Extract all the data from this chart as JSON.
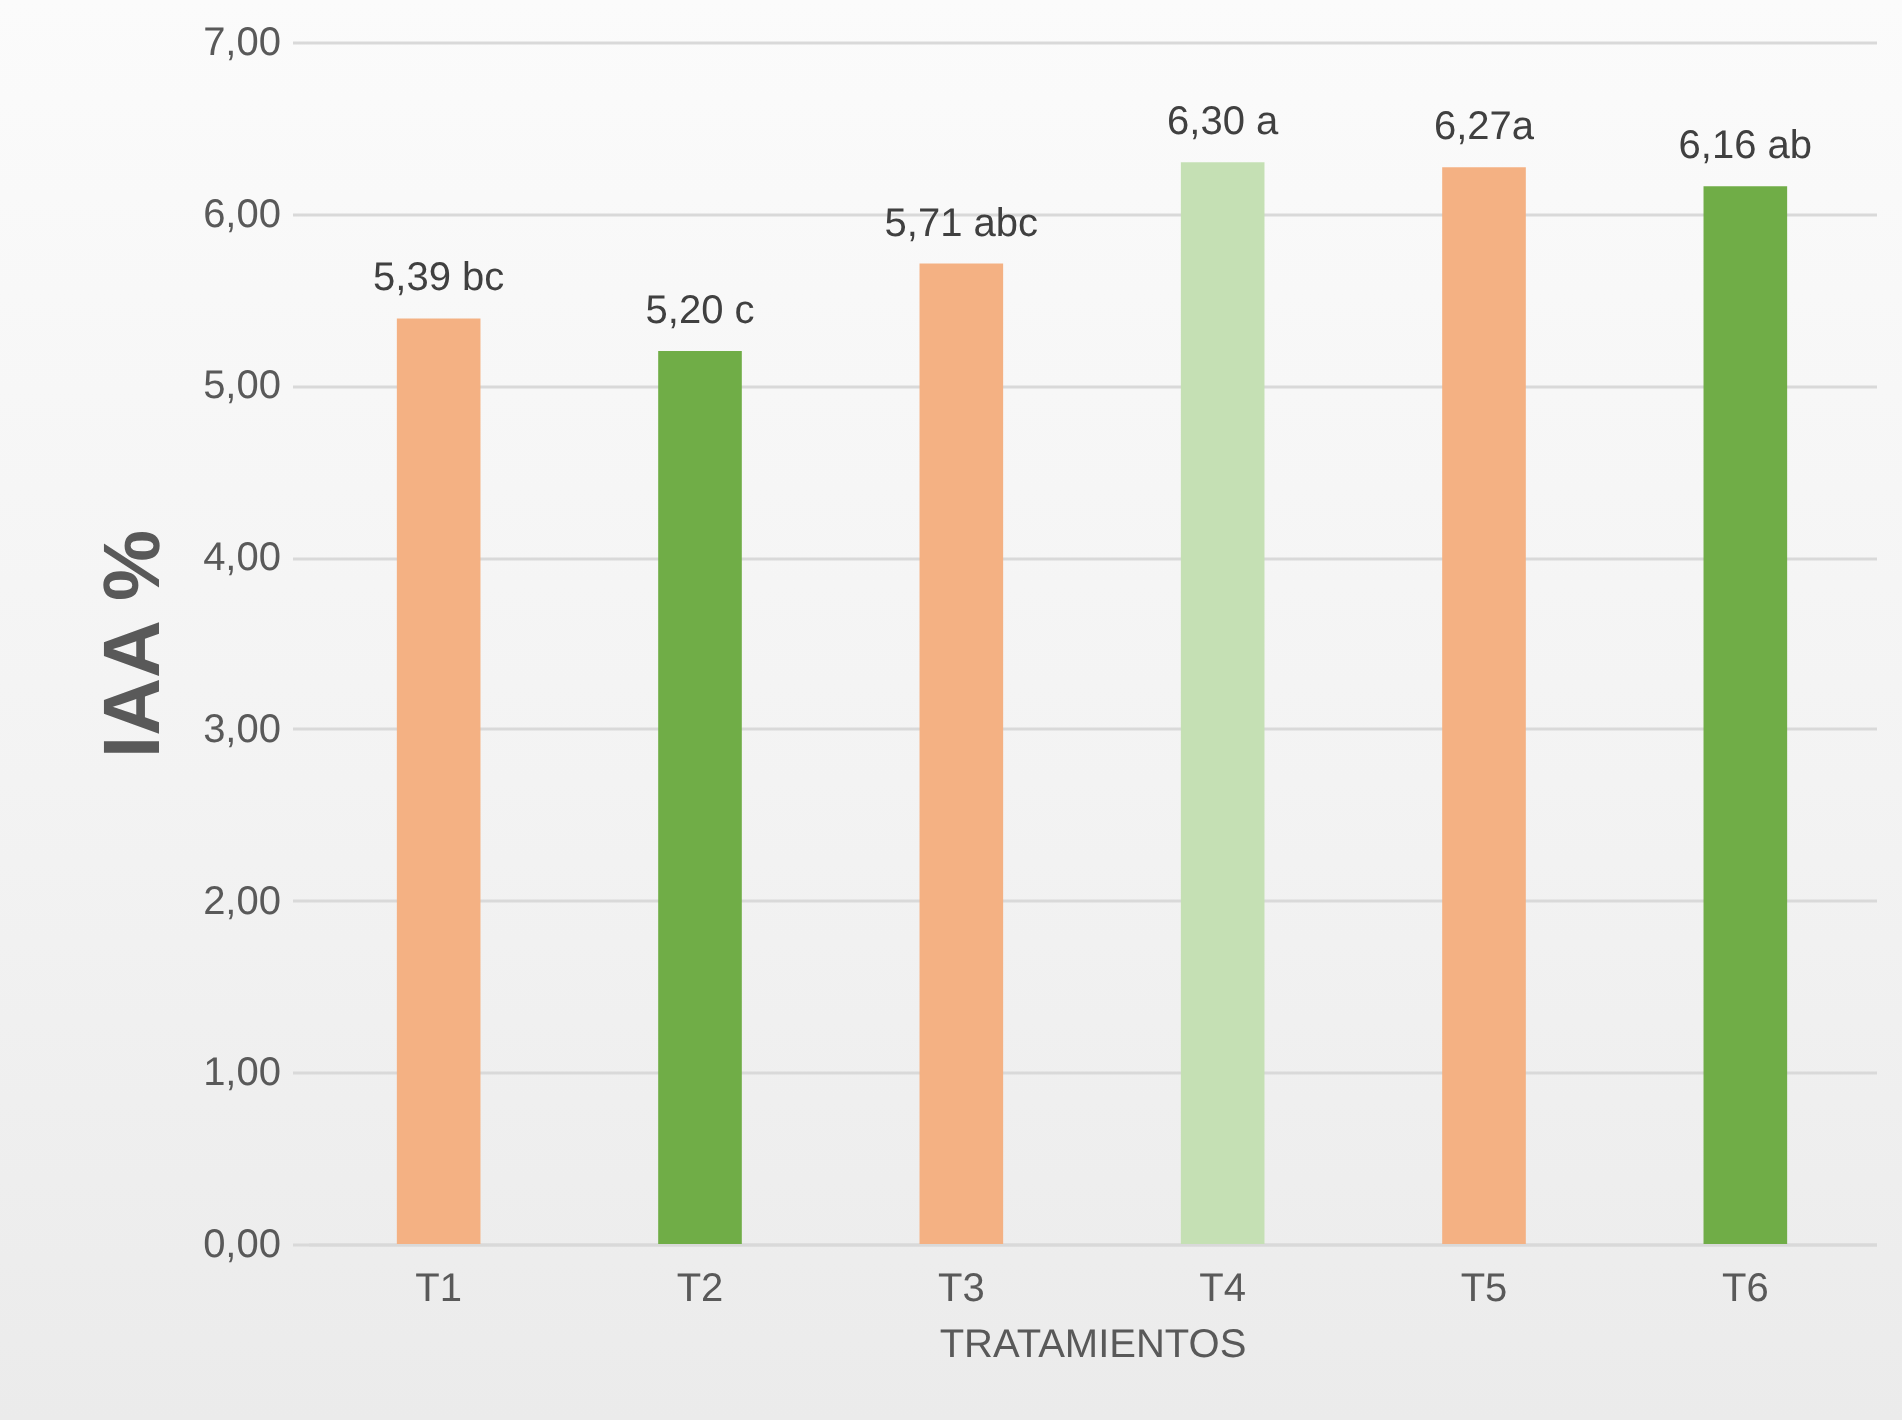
{
  "chart_data": {
    "type": "bar",
    "categories": [
      "T1",
      "T2",
      "T3",
      "T4",
      "T5",
      "T6"
    ],
    "values": [
      5.39,
      5.2,
      5.71,
      6.3,
      6.27,
      6.16
    ],
    "colors": [
      "#f4b183",
      "#70ad47",
      "#f4b183",
      "#c5e0b4",
      "#f4b183",
      "#70ad47"
    ],
    "value_labels": [
      "5,39 bc",
      "5,20 c",
      "5,71 abc",
      "6,30 a",
      "6,27a",
      "6,16 ab"
    ],
    "xlabel": "TRATAMIENTOS",
    "ylabel": "IAA %",
    "ylim": [
      0,
      7
    ],
    "yticks": [
      {
        "value": 0,
        "label": "0,00"
      },
      {
        "value": 1,
        "label": "1,00"
      },
      {
        "value": 2,
        "label": "2,00"
      },
      {
        "value": 3,
        "label": "3,00"
      },
      {
        "value": 4,
        "label": "4,00"
      },
      {
        "value": 5,
        "label": "5,00"
      },
      {
        "value": 6,
        "label": "6,00"
      },
      {
        "value": 7,
        "label": "7,00"
      }
    ],
    "grid": "y"
  }
}
